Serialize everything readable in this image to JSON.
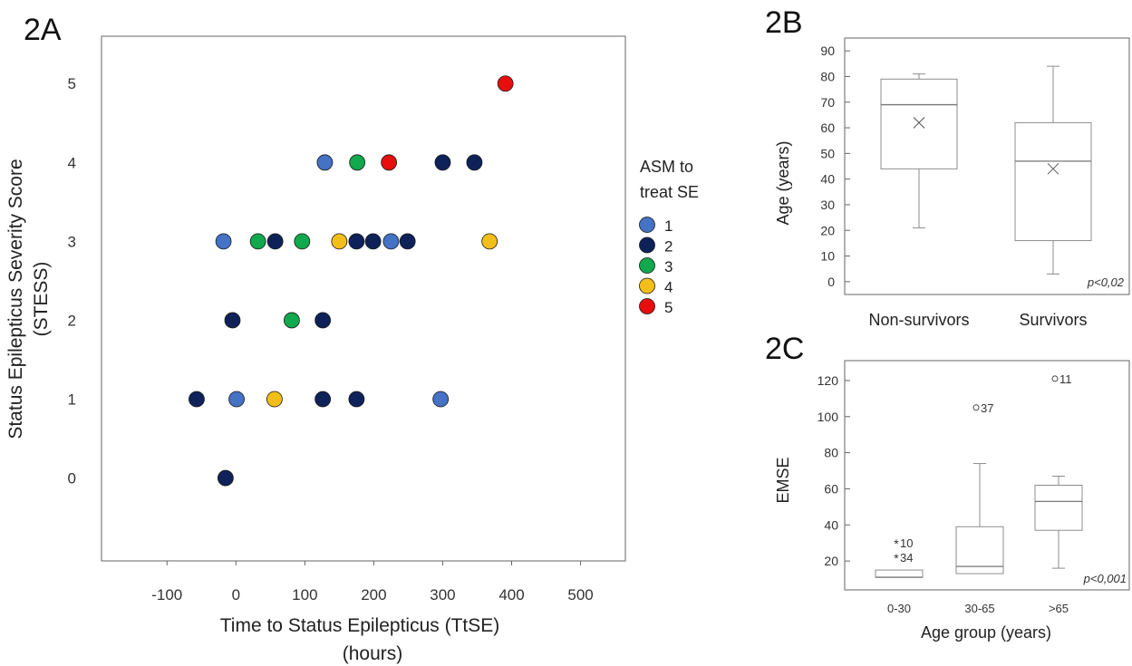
{
  "colors": {
    "1": "#4472C4",
    "2": "#0E2259",
    "3": "#12A84D",
    "4": "#F2BE1A",
    "5": "#E80E0E",
    "frame": "#666666",
    "box": "#8c8c8c"
  },
  "chart_data": [
    {
      "panel": "2A",
      "type": "scatter",
      "xlabel": "Time to Status Epilepticus (TtSE)",
      "xlabel2": "(hours)",
      "ylabel": "Status Epilepticus Severity Score",
      "ylabel2": "(STESS)",
      "xlim": [
        -195,
        565
      ],
      "ylim": [
        -1.05,
        5.6
      ],
      "xticks": [
        -100,
        0,
        100,
        200,
        300,
        400,
        500
      ],
      "yticks": [
        0,
        1,
        2,
        3,
        4,
        5
      ],
      "legend_title": [
        "ASM to",
        "treat SE"
      ],
      "legend_position": "right",
      "series": [
        {
          "name": "1",
          "color_key": "1",
          "points": [
            [
              129,
              4
            ],
            [
              -18,
              3
            ],
            [
              225,
              3
            ],
            [
              1,
              1
            ],
            [
              297,
              1
            ]
          ]
        },
        {
          "name": "2",
          "color_key": "2",
          "points": [
            [
              300,
              4
            ],
            [
              346,
              4
            ],
            [
              57,
              3
            ],
            [
              175,
              3
            ],
            [
              199,
              3
            ],
            [
              249,
              3
            ],
            [
              -5,
              2
            ],
            [
              126,
              2
            ],
            [
              -57,
              1
            ],
            [
              126,
              1
            ],
            [
              175,
              1
            ],
            [
              -15,
              0
            ]
          ]
        },
        {
          "name": "3",
          "color_key": "3",
          "points": [
            [
              176,
              4
            ],
            [
              32,
              3
            ],
            [
              96,
              3
            ],
            [
              81,
              2
            ]
          ]
        },
        {
          "name": "4",
          "color_key": "4",
          "points": [
            [
              150,
              3
            ],
            [
              368,
              3
            ],
            [
              56,
              1
            ]
          ]
        },
        {
          "name": "5",
          "color_key": "5",
          "points": [
            [
              222,
              4
            ],
            [
              391,
              5
            ]
          ]
        }
      ]
    },
    {
      "panel": "2B",
      "type": "box",
      "ylabel": "Age (years)",
      "ylim": [
        -5,
        95
      ],
      "yticks": [
        0,
        10,
        20,
        30,
        40,
        50,
        60,
        70,
        80,
        90
      ],
      "categories": [
        "Non-survivors",
        "Survivors"
      ],
      "boxes": [
        {
          "whisker_low": 21,
          "q1": 44,
          "median": 69,
          "q3": 79,
          "whisker_high": 81,
          "mean": 62
        },
        {
          "whisker_low": 3,
          "q1": 16,
          "median": 47,
          "q3": 62,
          "whisker_high": 84,
          "mean": 44
        }
      ],
      "annotation": "p<0,02"
    },
    {
      "panel": "2C",
      "type": "box",
      "ylabel": "EMSE",
      "xlabel": "Age group (years)",
      "ylim": [
        4,
        131
      ],
      "yticks": [
        20,
        40,
        60,
        80,
        100,
        120
      ],
      "categories": [
        "0-30",
        "30-65",
        ">65"
      ],
      "boxes": [
        {
          "whisker_low": 11,
          "q1": 11,
          "median": 11,
          "q3": 15,
          "whisker_high": 15,
          "outliers": [
            {
              "value": 30,
              "label": "10",
              "marker": "*"
            },
            {
              "value": 22,
              "label": "34",
              "marker": "*"
            }
          ]
        },
        {
          "whisker_low": 13,
          "q1": 13,
          "median": 17,
          "q3": 39,
          "whisker_high": 74,
          "outliers": [
            {
              "value": 105,
              "label": "37",
              "marker": "o"
            }
          ]
        },
        {
          "whisker_low": 16,
          "q1": 37,
          "median": 53,
          "q3": 62,
          "whisker_high": 67,
          "outliers": [
            {
              "value": 121,
              "label": "11",
              "marker": "o"
            }
          ]
        }
      ],
      "annotation": "p<0,001"
    }
  ],
  "panels": {
    "a": "2A",
    "b": "2B",
    "c": "2C"
  }
}
